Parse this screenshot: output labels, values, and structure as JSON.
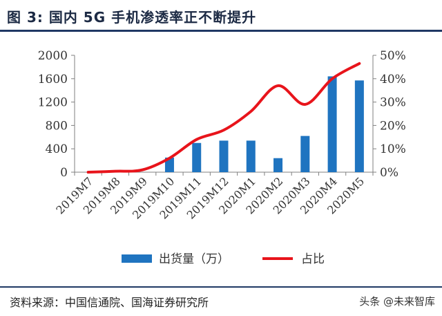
{
  "header": {
    "title": "图 3:  国内 5G 手机渗透率正不断提升"
  },
  "footer": {
    "source": "资料来源：中国信通院、国海证券研究所",
    "watermark": "头条 @未来智库"
  },
  "colors": {
    "bar": "#1f74c0",
    "line": "#e8141b",
    "axis": "#7f7f7f",
    "rule": "#1f3864"
  },
  "chart_data": {
    "type": "bar",
    "categories": [
      "2019M7",
      "2019M8",
      "2019M9",
      "2019M10",
      "2019M11",
      "2019M12",
      "2020M1",
      "2020M2",
      "2020M3",
      "2020M4",
      "2020M5"
    ],
    "series": [
      {
        "name": "出货量（万）",
        "type": "bar",
        "axis": "left",
        "values": [
          0,
          0,
          0,
          250,
          500,
          540,
          540,
          240,
          620,
          1640,
          1570
        ]
      },
      {
        "name": "占比",
        "type": "line",
        "axis": "right",
        "values": [
          0.0,
          0.4,
          1.0,
          6.0,
          14.0,
          18.0,
          26.0,
          37.0,
          29.0,
          40.0,
          46.5
        ]
      }
    ],
    "y_left": {
      "min": 0,
      "max": 2000,
      "ticks": [
        "0",
        "400",
        "800",
        "1200",
        "1600",
        "2000"
      ]
    },
    "y_right": {
      "min": 0,
      "max": 50,
      "ticks": [
        "0%",
        "10%",
        "20%",
        "30%",
        "40%",
        "50%"
      ]
    },
    "legend": {
      "position": "bottom",
      "items": [
        "出货量（万）",
        "占比"
      ]
    },
    "grid": false
  }
}
